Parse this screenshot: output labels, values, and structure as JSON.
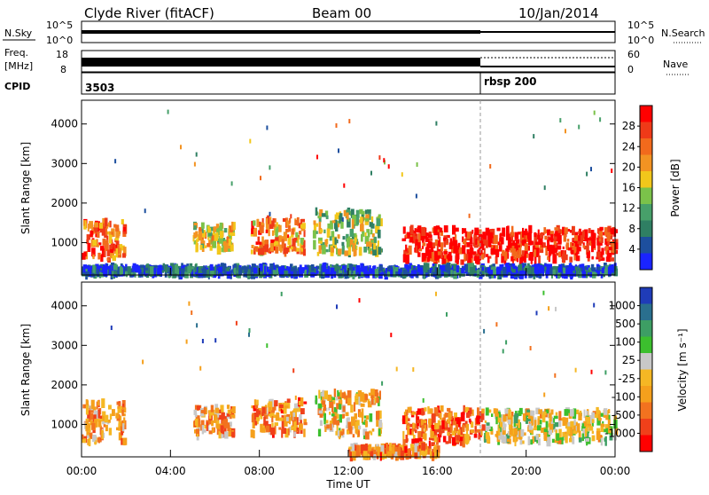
{
  "header": {
    "station": "Clyde River (fitACF)",
    "beam": "Beam 00",
    "date": "10/Jan/2014"
  },
  "nsky_panel": {
    "left_label": "N.Sky",
    "right_label": "N.Search",
    "left_ticks": [
      "10^5",
      "10^0"
    ],
    "right_ticks": [
      "10^5",
      "10^0"
    ]
  },
  "freq_panel": {
    "left_label_1": "Freq.",
    "left_label_2": "[MHz]",
    "right_label": "Nave",
    "left_ticks": [
      "18",
      "8"
    ],
    "right_ticks": [
      "60",
      "0"
    ]
  },
  "cpid_panel": {
    "label": "CPID",
    "entries": [
      {
        "text": "3503",
        "time": 0
      },
      {
        "text": "rbsp 200",
        "time": 18
      }
    ]
  },
  "time_axis": {
    "label": "Time UT",
    "ticks": [
      "00:00",
      "04:00",
      "08:00",
      "12:00",
      "16:00",
      "20:00",
      "00:00"
    ]
  },
  "chart_data": [
    {
      "type": "heatmap",
      "title": "Power",
      "xlabel": "Time UT",
      "ylabel": "Slant Range [km]",
      "xlim": [
        0,
        24
      ],
      "ylim": [
        180,
        4600
      ],
      "yticks": [
        "4000",
        "3000",
        "2000",
        "1000"
      ],
      "colorbar": {
        "label": "Power [dB]",
        "ticks": [
          "28",
          "24",
          "20",
          "16",
          "12",
          "8",
          "4"
        ],
        "range": [
          0,
          32
        ],
        "colors": [
          "#1a24ff",
          "#1d4f9e",
          "#2f7f63",
          "#47a06a",
          "#7bc24a",
          "#f2c71b",
          "#f39322",
          "#f26a1c",
          "#ef3a18",
          "#ff0000"
        ]
      },
      "scatter_regions": [
        {
          "t0": 0.0,
          "t1": 1.9,
          "r0": 550,
          "r1": 1550,
          "level": 0.78
        },
        {
          "t0": 5.0,
          "t1": 6.8,
          "r0": 800,
          "r1": 1450,
          "level": 0.55
        },
        {
          "t0": 7.6,
          "t1": 10.0,
          "r0": 750,
          "r1": 1600,
          "level": 0.7
        },
        {
          "t0": 10.4,
          "t1": 13.4,
          "r0": 700,
          "r1": 1800,
          "level": 0.45
        },
        {
          "t0": 14.4,
          "t1": 18.0,
          "r0": 500,
          "r1": 1350,
          "level": 0.95
        },
        {
          "t0": 18.0,
          "t1": 24.0,
          "r0": 550,
          "r1": 1350,
          "level": 0.95
        },
        {
          "t0": 0.0,
          "t1": 24.0,
          "r0": 180,
          "r1": 380,
          "level": 0.15
        }
      ]
    },
    {
      "type": "heatmap",
      "title": "Velocity",
      "xlabel": "Time UT",
      "ylabel": "Slant Range [km]",
      "xlim": [
        0,
        24
      ],
      "ylim": [
        180,
        4600
      ],
      "yticks": [
        "4000",
        "3000",
        "2000",
        "1000"
      ],
      "colorbar": {
        "label": "Velocity [m s⁻¹]",
        "ticks": [
          "1000",
          "500",
          "100",
          "25",
          "-25",
          "-100",
          "-500",
          "-1000"
        ],
        "range": [
          -1250,
          1250
        ],
        "colors": [
          "#ff0000",
          "#f0401a",
          "#f2721f",
          "#f5a01c",
          "#f5b724",
          "#c8c8c8",
          "#3cbf2e",
          "#3d9e64",
          "#2a6f8e",
          "#1f3cb8"
        ]
      },
      "scatter_regions": [
        {
          "t0": 0.0,
          "t1": 1.9,
          "r0": 550,
          "r1": 1550,
          "level": 0.35
        },
        {
          "t0": 5.0,
          "t1": 6.8,
          "r0": 700,
          "r1": 1450,
          "level": 0.35
        },
        {
          "t0": 7.6,
          "t1": 10.0,
          "r0": 750,
          "r1": 1600,
          "level": 0.3
        },
        {
          "t0": 10.4,
          "t1": 13.4,
          "r0": 700,
          "r1": 1800,
          "level": 0.45
        },
        {
          "t0": 14.4,
          "t1": 18.0,
          "r0": 500,
          "r1": 1400,
          "level": 0.22
        },
        {
          "t0": 18.0,
          "t1": 24.0,
          "r0": 550,
          "r1": 1350,
          "level": 0.5
        },
        {
          "t0": 12.0,
          "t1": 16.0,
          "r0": 180,
          "r1": 450,
          "level": 0.3
        }
      ]
    }
  ]
}
